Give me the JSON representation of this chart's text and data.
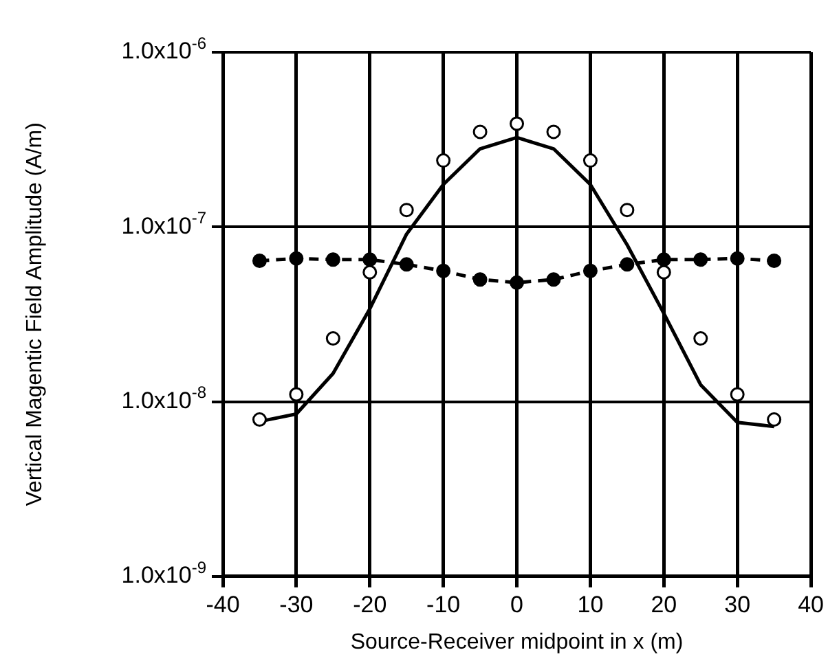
{
  "chart_data": {
    "type": "scatter",
    "xlabel": "Source-Receiver midpoint in x (m)",
    "ylabel": "Vertical Magentic Field Amplitude (A/m)",
    "log": "y",
    "grid": true,
    "legend": false,
    "xlim": [
      -40,
      40
    ],
    "xticks": [
      -40,
      -30,
      -20,
      -10,
      0,
      10,
      20,
      30,
      40
    ],
    "ylim": [
      1e-09,
      1e-06
    ],
    "yticks": [
      {
        "value": 1e-09,
        "label": "1.0x10$^{-9}$"
      },
      {
        "value": 1e-08,
        "label": "1.0x10$^{-8}$"
      },
      {
        "value": 1e-07,
        "label": "1.0x10$^{-7}$"
      },
      {
        "value": 1e-06,
        "label": "1.0x10$^{-6}$"
      }
    ],
    "series": [
      {
        "type": "scatter",
        "marker": "circle",
        "color": "#000000",
        "x": [
          -35,
          -30,
          -25,
          -20,
          -15,
          -10,
          -5,
          0,
          5,
          10,
          15,
          20,
          25,
          30,
          35
        ],
        "values": [
          7.9e-09,
          1.1e-08,
          2.3e-08,
          5.5e-08,
          1.25e-07,
          2.4e-07,
          3.5e-07,
          3.9e-07,
          3.5e-07,
          2.4e-07,
          1.25e-07,
          5.5e-08,
          2.3e-08,
          1.1e-08,
          7.9e-09
        ]
      },
      {
        "type": "line",
        "marker": "none",
        "line_style": "solid",
        "color": "#000000",
        "x": [
          -35,
          -30,
          -25,
          -20,
          -15,
          -10,
          -5,
          0,
          5,
          10,
          15,
          20,
          25,
          30,
          35
        ],
        "values": [
          7.7e-09,
          8.5e-09,
          1.45e-08,
          3.4e-08,
          9.1e-08,
          1.75e-07,
          2.8e-07,
          3.25e-07,
          2.8e-07,
          1.75e-07,
          7.9e-08,
          3.2e-08,
          1.25e-08,
          7.6e-09,
          7.2e-09
        ]
      },
      {
        "type": "line",
        "marker": "circle",
        "line_style": "dashed",
        "color": "#000000",
        "x": [
          -35,
          -30,
          -25,
          -20,
          -15,
          -10,
          -5,
          0,
          5,
          10,
          15,
          20,
          25,
          30,
          35
        ],
        "values": [
          6.4e-08,
          6.6e-08,
          6.5e-08,
          6.5e-08,
          6.1e-08,
          5.6e-08,
          5e-08,
          4.8e-08,
          5e-08,
          5.6e-08,
          6.1e-08,
          6.5e-08,
          6.5e-08,
          6.6e-08,
          6.4e-08
        ]
      }
    ]
  }
}
